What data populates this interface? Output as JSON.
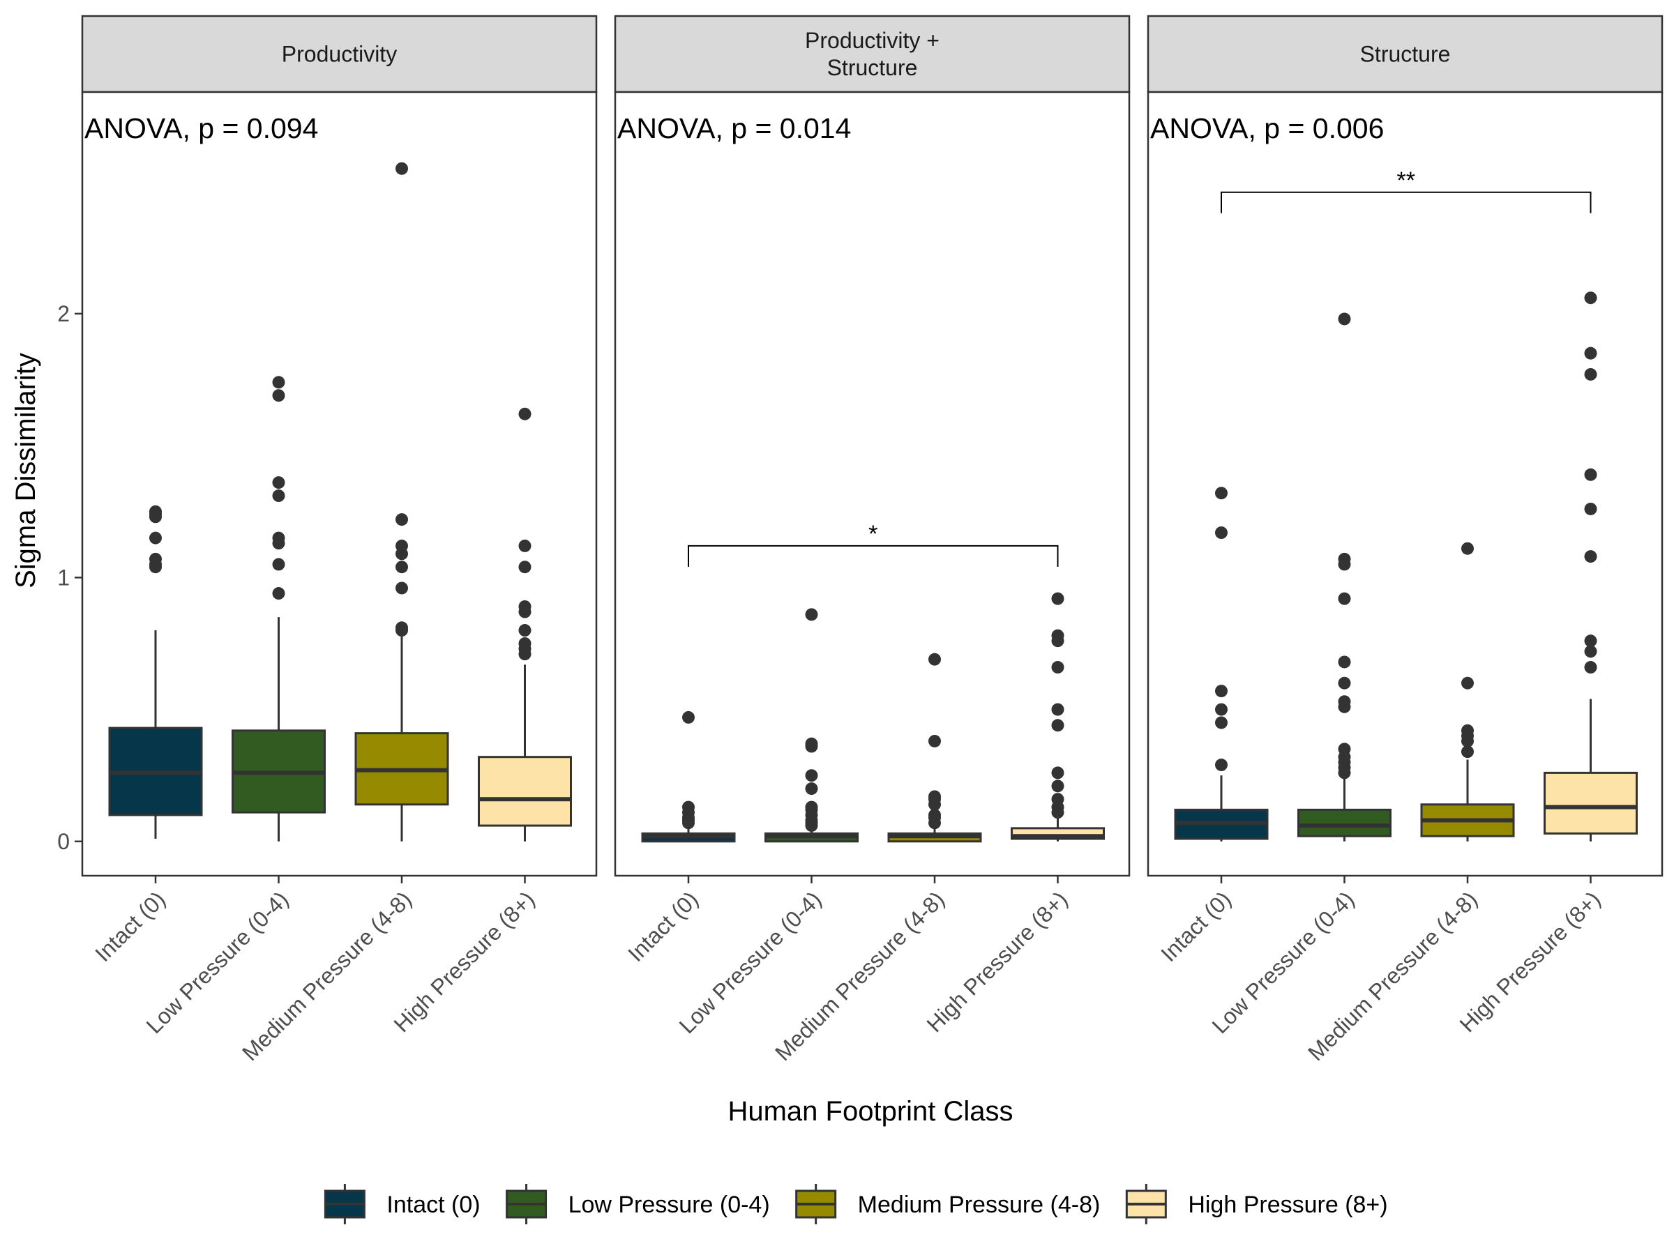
{
  "chart_data": {
    "type": "box",
    "ylabel": "Sigma Dissimilarity",
    "xlabel": "Human Footprint Class",
    "ylim": [
      -0.13,
      2.84
    ],
    "y_ticks": [
      0,
      1,
      2
    ],
    "grid": false,
    "legend_position": "bottom",
    "categories": [
      "Intact (0)",
      "Low Pressure (0-4)",
      "Medium Pressure (4-8)",
      "High Pressure (8+)"
    ],
    "colors": {
      "Intact (0)": "#05364a",
      "Low Pressure (0-4)": "#325b22",
      "Medium Pressure (4-8)": "#968a00",
      "High Pressure (8+)": "#fde3a7"
    },
    "legend": [
      "Intact (0)",
      "Low Pressure (0-4)",
      "Medium Pressure (4-8)",
      "High Pressure (8+)"
    ],
    "panels": [
      {
        "title_lines": [
          "Productivity"
        ],
        "annotation": "ANOVA, p = 0.094",
        "comparisons": [],
        "boxes": [
          {
            "category": "Intact (0)",
            "lower_whisker": 0.01,
            "q1": 0.1,
            "median": 0.26,
            "q3": 0.43,
            "upper_whisker": 0.8,
            "outliers": [
              1.04,
              1.05,
              1.07,
              1.15,
              1.23,
              1.24,
              1.25
            ]
          },
          {
            "category": "Low Pressure (0-4)",
            "lower_whisker": 0.0,
            "q1": 0.11,
            "median": 0.26,
            "q3": 0.42,
            "upper_whisker": 0.85,
            "outliers": [
              0.94,
              1.05,
              1.13,
              1.15,
              1.31,
              1.36,
              1.69,
              1.74
            ]
          },
          {
            "category": "Medium Pressure (4-8)",
            "lower_whisker": 0.0,
            "q1": 0.14,
            "median": 0.27,
            "q3": 0.41,
            "upper_whisker": 0.78,
            "outliers": [
              0.8,
              0.81,
              0.96,
              1.04,
              1.09,
              1.12,
              1.22,
              2.55
            ]
          },
          {
            "category": "High Pressure (8+)",
            "lower_whisker": 0.0,
            "q1": 0.06,
            "median": 0.16,
            "q3": 0.32,
            "upper_whisker": 0.67,
            "outliers": [
              0.71,
              0.73,
              0.75,
              0.8,
              0.87,
              0.89,
              1.04,
              1.12,
              1.62
            ]
          }
        ]
      },
      {
        "title_lines": [
          "Productivity +",
          "Structure"
        ],
        "annotation": "ANOVA, p = 0.014",
        "comparisons": [
          {
            "from": "Intact (0)",
            "to": "High Pressure (8+)",
            "y": 1.12,
            "label": "*"
          }
        ],
        "boxes": [
          {
            "category": "Intact (0)",
            "lower_whisker": 0.0,
            "q1": 0.0,
            "median": 0.02,
            "q3": 0.03,
            "upper_whisker": 0.06,
            "outliers": [
              0.07,
              0.08,
              0.09,
              0.11,
              0.13,
              0.47
            ]
          },
          {
            "category": "Low Pressure (0-4)",
            "lower_whisker": 0.0,
            "q1": 0.0,
            "median": 0.02,
            "q3": 0.03,
            "upper_whisker": 0.05,
            "outliers": [
              0.06,
              0.07,
              0.08,
              0.1,
              0.12,
              0.13,
              0.2,
              0.25,
              0.36,
              0.37,
              0.86
            ]
          },
          {
            "category": "Medium Pressure (4-8)",
            "lower_whisker": 0.0,
            "q1": 0.0,
            "median": 0.02,
            "q3": 0.03,
            "upper_whisker": 0.05,
            "outliers": [
              0.07,
              0.09,
              0.1,
              0.14,
              0.16,
              0.17,
              0.38,
              0.69
            ]
          },
          {
            "category": "High Pressure (8+)",
            "lower_whisker": 0.0,
            "q1": 0.01,
            "median": 0.02,
            "q3": 0.05,
            "upper_whisker": 0.1,
            "outliers": [
              0.11,
              0.13,
              0.16,
              0.21,
              0.26,
              0.44,
              0.5,
              0.66,
              0.76,
              0.78,
              0.92
            ]
          }
        ]
      },
      {
        "title_lines": [
          "Structure"
        ],
        "annotation": "ANOVA, p = 0.006",
        "comparisons": [
          {
            "from": "Intact (0)",
            "to": "High Pressure (8+)",
            "y": 2.46,
            "label": "**"
          }
        ],
        "boxes": [
          {
            "category": "Intact (0)",
            "lower_whisker": 0.0,
            "q1": 0.01,
            "median": 0.07,
            "q3": 0.12,
            "upper_whisker": 0.25,
            "outliers": [
              0.29,
              0.45,
              0.5,
              0.57,
              1.17,
              1.32
            ]
          },
          {
            "category": "Low Pressure (0-4)",
            "lower_whisker": 0.0,
            "q1": 0.02,
            "median": 0.06,
            "q3": 0.12,
            "upper_whisker": 0.25,
            "outliers": [
              0.26,
              0.28,
              0.3,
              0.32,
              0.35,
              0.51,
              0.53,
              0.6,
              0.68,
              0.92,
              1.05,
              1.07,
              1.98
            ]
          },
          {
            "category": "Medium Pressure (4-8)",
            "lower_whisker": 0.0,
            "q1": 0.02,
            "median": 0.08,
            "q3": 0.14,
            "upper_whisker": 0.31,
            "outliers": [
              0.34,
              0.38,
              0.4,
              0.42,
              0.6,
              1.11
            ]
          },
          {
            "category": "High Pressure (8+)",
            "lower_whisker": 0.0,
            "q1": 0.03,
            "median": 0.13,
            "q3": 0.26,
            "upper_whisker": 0.54,
            "outliers": [
              0.66,
              0.72,
              0.76,
              1.08,
              1.26,
              1.39,
              1.77,
              1.85,
              2.06
            ]
          }
        ]
      }
    ]
  }
}
